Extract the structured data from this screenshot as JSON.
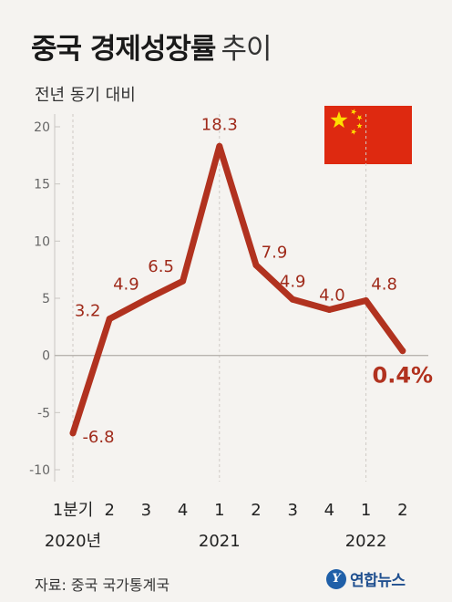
{
  "title": {
    "bold": "중국 경제성장률",
    "light": "추이"
  },
  "subtitle": "전년 동기 대비",
  "source": "자료: 중국 국가통계국",
  "logo": {
    "mark": "Y",
    "text": "연합뉴스"
  },
  "flag": {
    "background": "#de2910",
    "stars": "#ffde00"
  },
  "chart_data": {
    "type": "line",
    "categories": [
      "1분기",
      "2",
      "3",
      "4",
      "1",
      "2",
      "3",
      "4",
      "1",
      "2"
    ],
    "year_labels": [
      {
        "index": 0,
        "label": "2020년"
      },
      {
        "index": 4,
        "label": "2021"
      },
      {
        "index": 8,
        "label": "2022"
      }
    ],
    "series": [
      {
        "values": [
          -6.8,
          3.2,
          4.9,
          6.5,
          18.3,
          7.9,
          4.9,
          4.0,
          4.8,
          0.4
        ],
        "labels": [
          "-6.8",
          "3.2",
          "4.9",
          "6.5",
          "18.3",
          "7.9",
          "4.9",
          "4.0",
          "4.8",
          "0.4%"
        ],
        "color": "#b1321f"
      }
    ],
    "yticks": [
      20,
      15,
      10,
      5,
      0,
      -5,
      -10
    ],
    "ylim": [
      -10,
      20
    ],
    "vertical_guides_at": [
      0,
      4,
      8
    ],
    "grid": false
  }
}
